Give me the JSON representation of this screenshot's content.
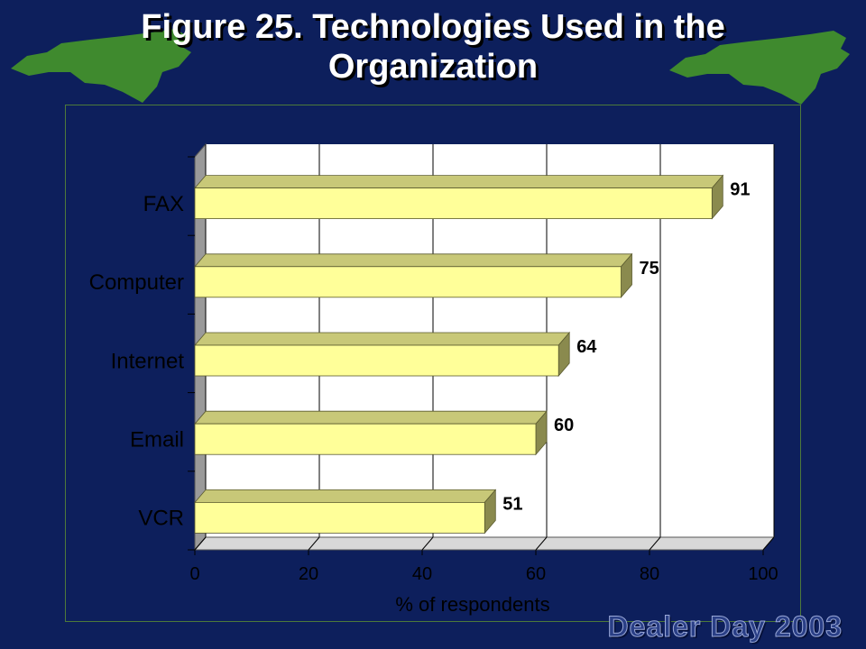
{
  "slide": {
    "title_line1": "Figure 25. Technologies Used in the",
    "title_line2": "Organization",
    "footer": "Dealer Day 2003",
    "colors": {
      "background": "#0d1f5c",
      "bar_front": "#ffff99",
      "bar_top": "#c8c878",
      "bar_side": "#8a8a4e",
      "plot_wall": "#ffffff",
      "map": "#3f8a2e"
    },
    "decorations": [
      "nc-state-map-left",
      "nc-state-map-right"
    ]
  },
  "chart_data": {
    "type": "bar",
    "orientation": "horizontal",
    "categories": [
      "FAX",
      "Computer",
      "Internet",
      "Email",
      "VCR"
    ],
    "values": [
      91,
      75,
      64,
      60,
      51
    ],
    "xlabel": "% of respondents",
    "ylabel": "",
    "xlim": [
      0,
      100
    ],
    "xticks": [
      "0",
      "20",
      "40",
      "60",
      "80",
      "100"
    ],
    "grid": true,
    "data_labels": true,
    "legend": "none"
  }
}
